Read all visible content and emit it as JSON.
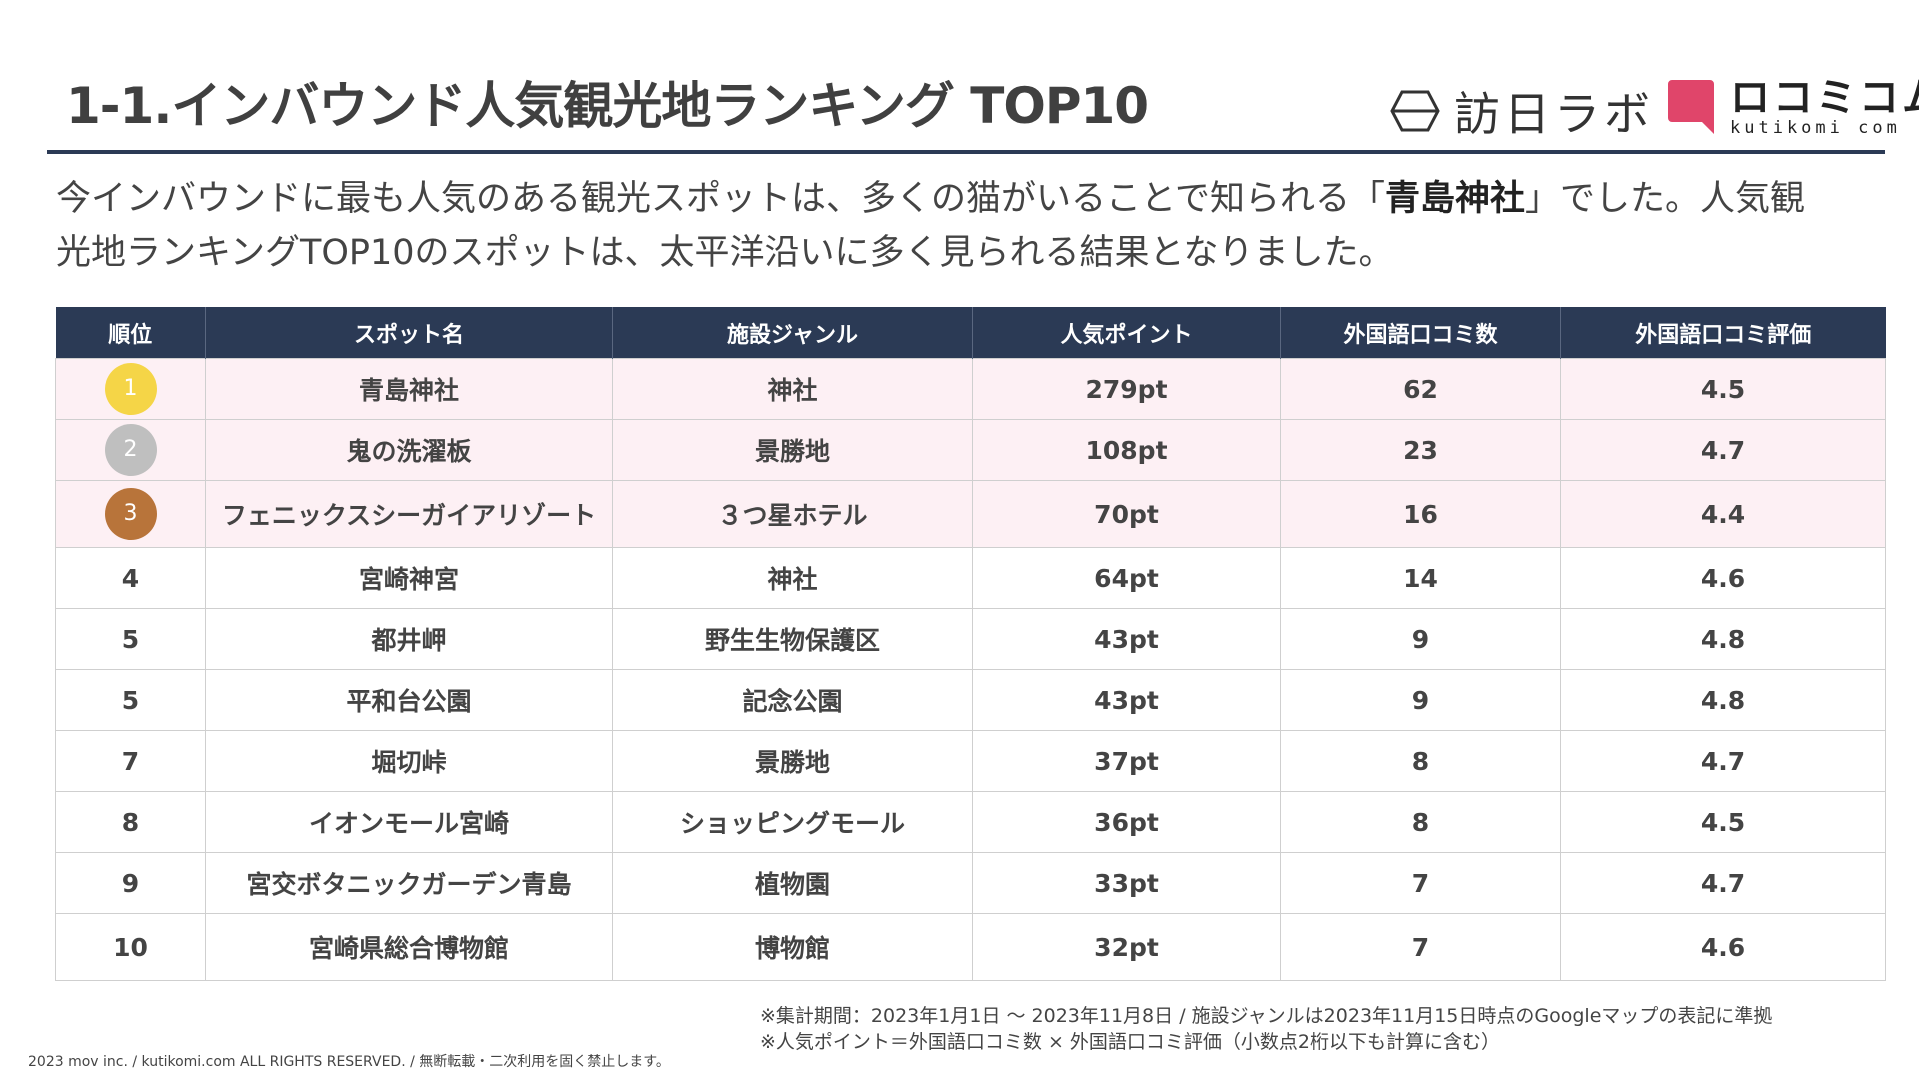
{
  "header": {
    "title": "1-1.インバウンド人気観光地ランキング TOP10",
    "logo_houjin": "訪日ラボ",
    "logo_kuchikomi": "ロコミコム",
    "logo_kuchikomi_sub": "kutikomi com"
  },
  "intro": {
    "before": "今インバウンドに最も人気のある観光スポットは、多くの猫がいることで知られる「",
    "highlight": "青島神社",
    "after": "」でした。人気観光地ランキングTOP10のスポットは、太平洋沿いに多く見られる結果となりました。"
  },
  "table": {
    "headers": [
      "順位",
      "スポット名",
      "施設ジャンル",
      "人気ポイント",
      "外国語口コミ数",
      "外国語口コミ評価"
    ],
    "rows": [
      {
        "rank": "1",
        "name": "青島神社",
        "genre": "神社",
        "points": "279pt",
        "reviews": "62",
        "rating": "4.5"
      },
      {
        "rank": "2",
        "name": "鬼の洗濯板",
        "genre": "景勝地",
        "points": "108pt",
        "reviews": "23",
        "rating": "4.7"
      },
      {
        "rank": "3",
        "name": "フェニックスシーガイアリゾート",
        "genre": "３つ星ホテル",
        "points": "70pt",
        "reviews": "16",
        "rating": "4.4"
      },
      {
        "rank": "4",
        "name": "宮崎神宮",
        "genre": "神社",
        "points": "64pt",
        "reviews": "14",
        "rating": "4.6"
      },
      {
        "rank": "5",
        "name": "都井岬",
        "genre": "野生生物保護区",
        "points": "43pt",
        "reviews": "9",
        "rating": "4.8"
      },
      {
        "rank": "5",
        "name": "平和台公園",
        "genre": "記念公園",
        "points": "43pt",
        "reviews": "9",
        "rating": "4.8"
      },
      {
        "rank": "7",
        "name": "堀切峠",
        "genre": "景勝地",
        "points": "37pt",
        "reviews": "8",
        "rating": "4.7"
      },
      {
        "rank": "8",
        "name": "イオンモール宮崎",
        "genre": "ショッピングモール",
        "points": "36pt",
        "reviews": "8",
        "rating": "4.5"
      },
      {
        "rank": "9",
        "name": "宮交ボタニックガーデン青島",
        "genre": "植物園",
        "points": "33pt",
        "reviews": "7",
        "rating": "4.7"
      },
      {
        "rank": "10",
        "name": "宮崎県総合博物館",
        "genre": "博物館",
        "points": "32pt",
        "reviews": "7",
        "rating": "4.6"
      }
    ]
  },
  "notes": {
    "line1": "※集計期間：2023年1月1日 〜 2023年11月8日 / 施設ジャンルは2023年11月15日時点のGoogleマップの表記に準拠",
    "line2": "※人気ポイント＝外国語口コミ数 × 外国語口コミ評価（小数点2桁以下も計算に含む）"
  },
  "footer": {
    "copyright": "2023 mov inc. / kutikomi.com ALL RIGHTS RESERVED. / 無断転載・二次利用を固く禁止します。"
  },
  "colors": {
    "header_bg": "#2b3a55",
    "top3_row_bg": "#fdf0f4",
    "gold": "#f5d547",
    "silver": "#bfbfbf",
    "bronze": "#b8743a",
    "logo_pink": "#e0456a"
  }
}
